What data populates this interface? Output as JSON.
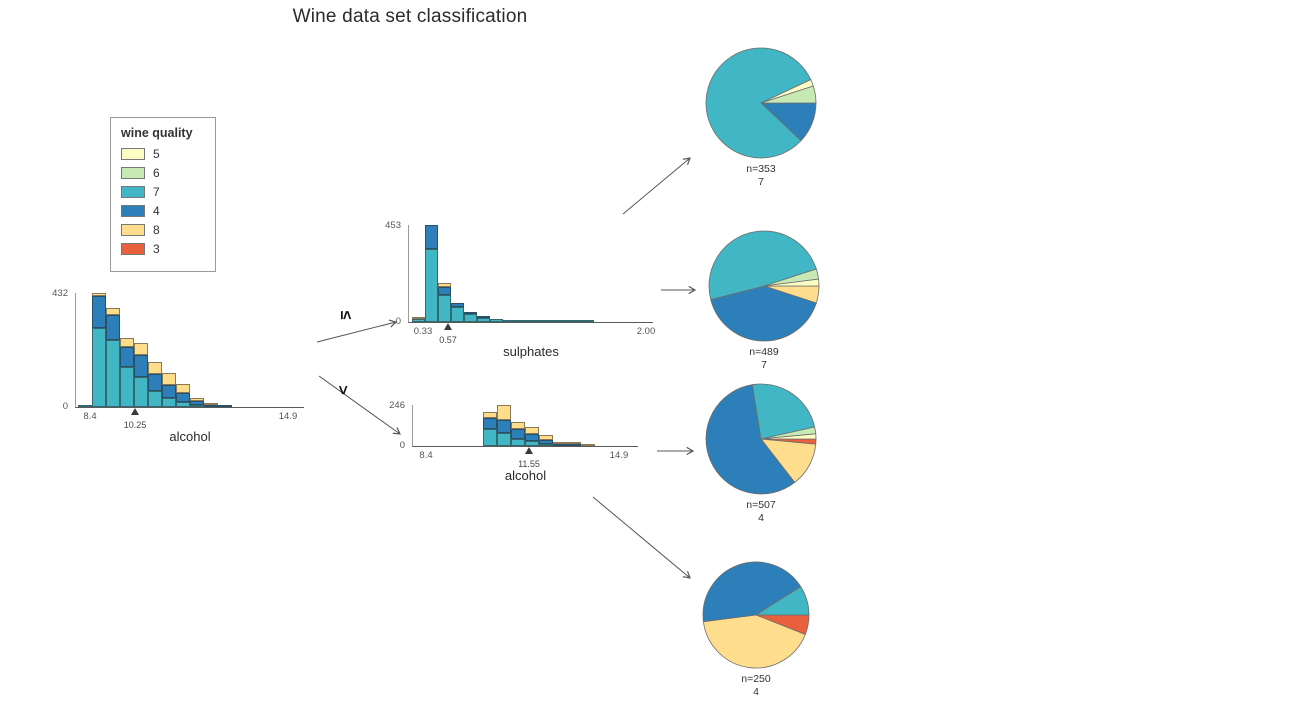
{
  "title": "Wine data set classification",
  "legend": {
    "title": "wine quality",
    "items": [
      "5",
      "6",
      "7",
      "4",
      "8",
      "3"
    ]
  },
  "class_colors": {
    "5": "#FCFDC4",
    "6": "#C7E9B4",
    "7": "#41B6C4",
    "4": "#2C7FB8",
    "8": "#FEDD8D",
    "3": "#E8613C"
  },
  "edges": {
    "left_label": "≤",
    "right_label": ">"
  },
  "chart_data": [
    {
      "id": "hist-root",
      "type": "bar",
      "stacked": true,
      "xlabel": "alcohol",
      "ylim": [
        0,
        432
      ],
      "y_max_label": "432",
      "y_zero_label": "0",
      "x_ticks": [
        "8.4",
        "14.9"
      ],
      "split_value": "10.25",
      "bars": [
        [
          [
            "7",
            6
          ]
        ],
        [
          [
            "7",
            300
          ],
          [
            "4",
            122
          ],
          [
            "8",
            10
          ]
        ],
        [
          [
            "7",
            255
          ],
          [
            "4",
            95
          ],
          [
            "8",
            25
          ]
        ],
        [
          [
            "7",
            150
          ],
          [
            "4",
            78
          ],
          [
            "8",
            32
          ]
        ],
        [
          [
            "7",
            112
          ],
          [
            "4",
            85
          ],
          [
            "8",
            45
          ]
        ],
        [
          [
            "7",
            60
          ],
          [
            "4",
            66
          ],
          [
            "8",
            46
          ]
        ],
        [
          [
            "7",
            34
          ],
          [
            "4",
            50
          ],
          [
            "8",
            46
          ]
        ],
        [
          [
            "7",
            18
          ],
          [
            "4",
            36
          ],
          [
            "8",
            34
          ]
        ],
        [
          [
            "7",
            8
          ],
          [
            "4",
            16
          ],
          [
            "8",
            12
          ]
        ],
        [
          [
            "4",
            7
          ],
          [
            "8",
            6
          ]
        ],
        [
          [
            "4",
            4
          ]
        ]
      ]
    },
    {
      "id": "hist-sulphates",
      "type": "bar",
      "stacked": true,
      "xlabel": "sulphates",
      "ylim": [
        0,
        453
      ],
      "y_max_label": "453",
      "y_zero_label": "0",
      "x_ticks": [
        "0.33",
        "2.00"
      ],
      "split_value": "0.57",
      "bars": [
        [
          [
            "7",
            12
          ],
          [
            "8",
            4
          ]
        ],
        [
          [
            "7",
            340
          ],
          [
            "4",
            112
          ]
        ],
        [
          [
            "7",
            128
          ],
          [
            "4",
            34
          ],
          [
            "8",
            18
          ]
        ],
        [
          [
            "7",
            68
          ],
          [
            "4",
            22
          ]
        ],
        [
          [
            "7",
            38
          ],
          [
            "4",
            10
          ]
        ],
        [
          [
            "7",
            20
          ],
          [
            "4",
            6
          ]
        ],
        [
          [
            "7",
            12
          ]
        ],
        [
          [
            "7",
            7
          ]
        ],
        [
          [
            "7",
            4
          ]
        ],
        [
          [
            "7",
            3
          ]
        ],
        [
          [
            "7",
            2
          ]
        ],
        [
          [
            "7",
            2
          ]
        ],
        [
          [
            "7",
            1
          ]
        ],
        [
          [
            "7",
            2
          ]
        ]
      ]
    },
    {
      "id": "hist-alcohol2",
      "type": "bar",
      "stacked": true,
      "xlabel": "alcohol",
      "ylim": [
        0,
        246
      ],
      "y_max_label": "246",
      "y_zero_label": "0",
      "x_ticks": [
        "8.4",
        "14.9"
      ],
      "split_value": "11.55",
      "bars": [
        [
          [
            "7",
            100
          ],
          [
            "4",
            70
          ],
          [
            "8",
            34
          ]
        ],
        [
          [
            "7",
            80
          ],
          [
            "4",
            76
          ],
          [
            "8",
            88
          ]
        ],
        [
          [
            "7",
            45
          ],
          [
            "4",
            56
          ],
          [
            "8",
            42
          ]
        ],
        [
          [
            "7",
            28
          ],
          [
            "4",
            46
          ],
          [
            "8",
            40
          ]
        ],
        [
          [
            "7",
            12
          ],
          [
            "4",
            26
          ],
          [
            "8",
            26
          ]
        ],
        [
          [
            "4",
            12
          ],
          [
            "8",
            12
          ]
        ],
        [
          [
            "4",
            5
          ],
          [
            "8",
            5
          ]
        ],
        [
          [
            "8",
            4
          ]
        ]
      ]
    },
    {
      "id": "pie-1",
      "type": "pie",
      "n_label": "n=353",
      "class_label": "7",
      "slices": [
        [
          "4",
          0.12
        ],
        [
          "7",
          0.81
        ],
        [
          "5",
          0.02
        ],
        [
          "6",
          0.05
        ]
      ]
    },
    {
      "id": "pie-2",
      "type": "pie",
      "n_label": "n=489",
      "class_label": "7",
      "slices": [
        [
          "8",
          0.05
        ],
        [
          "4",
          0.41
        ],
        [
          "7",
          0.49
        ],
        [
          "6",
          0.03
        ],
        [
          "5",
          0.02
        ]
      ]
    },
    {
      "id": "pie-3",
      "type": "pie",
      "n_label": "n=507",
      "class_label": "4",
      "slices": [
        [
          "3",
          0.015
        ],
        [
          "8",
          0.13
        ],
        [
          "4",
          0.58
        ],
        [
          "7",
          0.24
        ],
        [
          "6",
          0.02
        ],
        [
          "5",
          0.015
        ]
      ]
    },
    {
      "id": "pie-4",
      "type": "pie",
      "n_label": "n=250",
      "class_label": "4",
      "slices": [
        [
          "3",
          0.06
        ],
        [
          "8",
          0.42
        ],
        [
          "4",
          0.43
        ],
        [
          "7",
          0.09
        ]
      ]
    }
  ]
}
